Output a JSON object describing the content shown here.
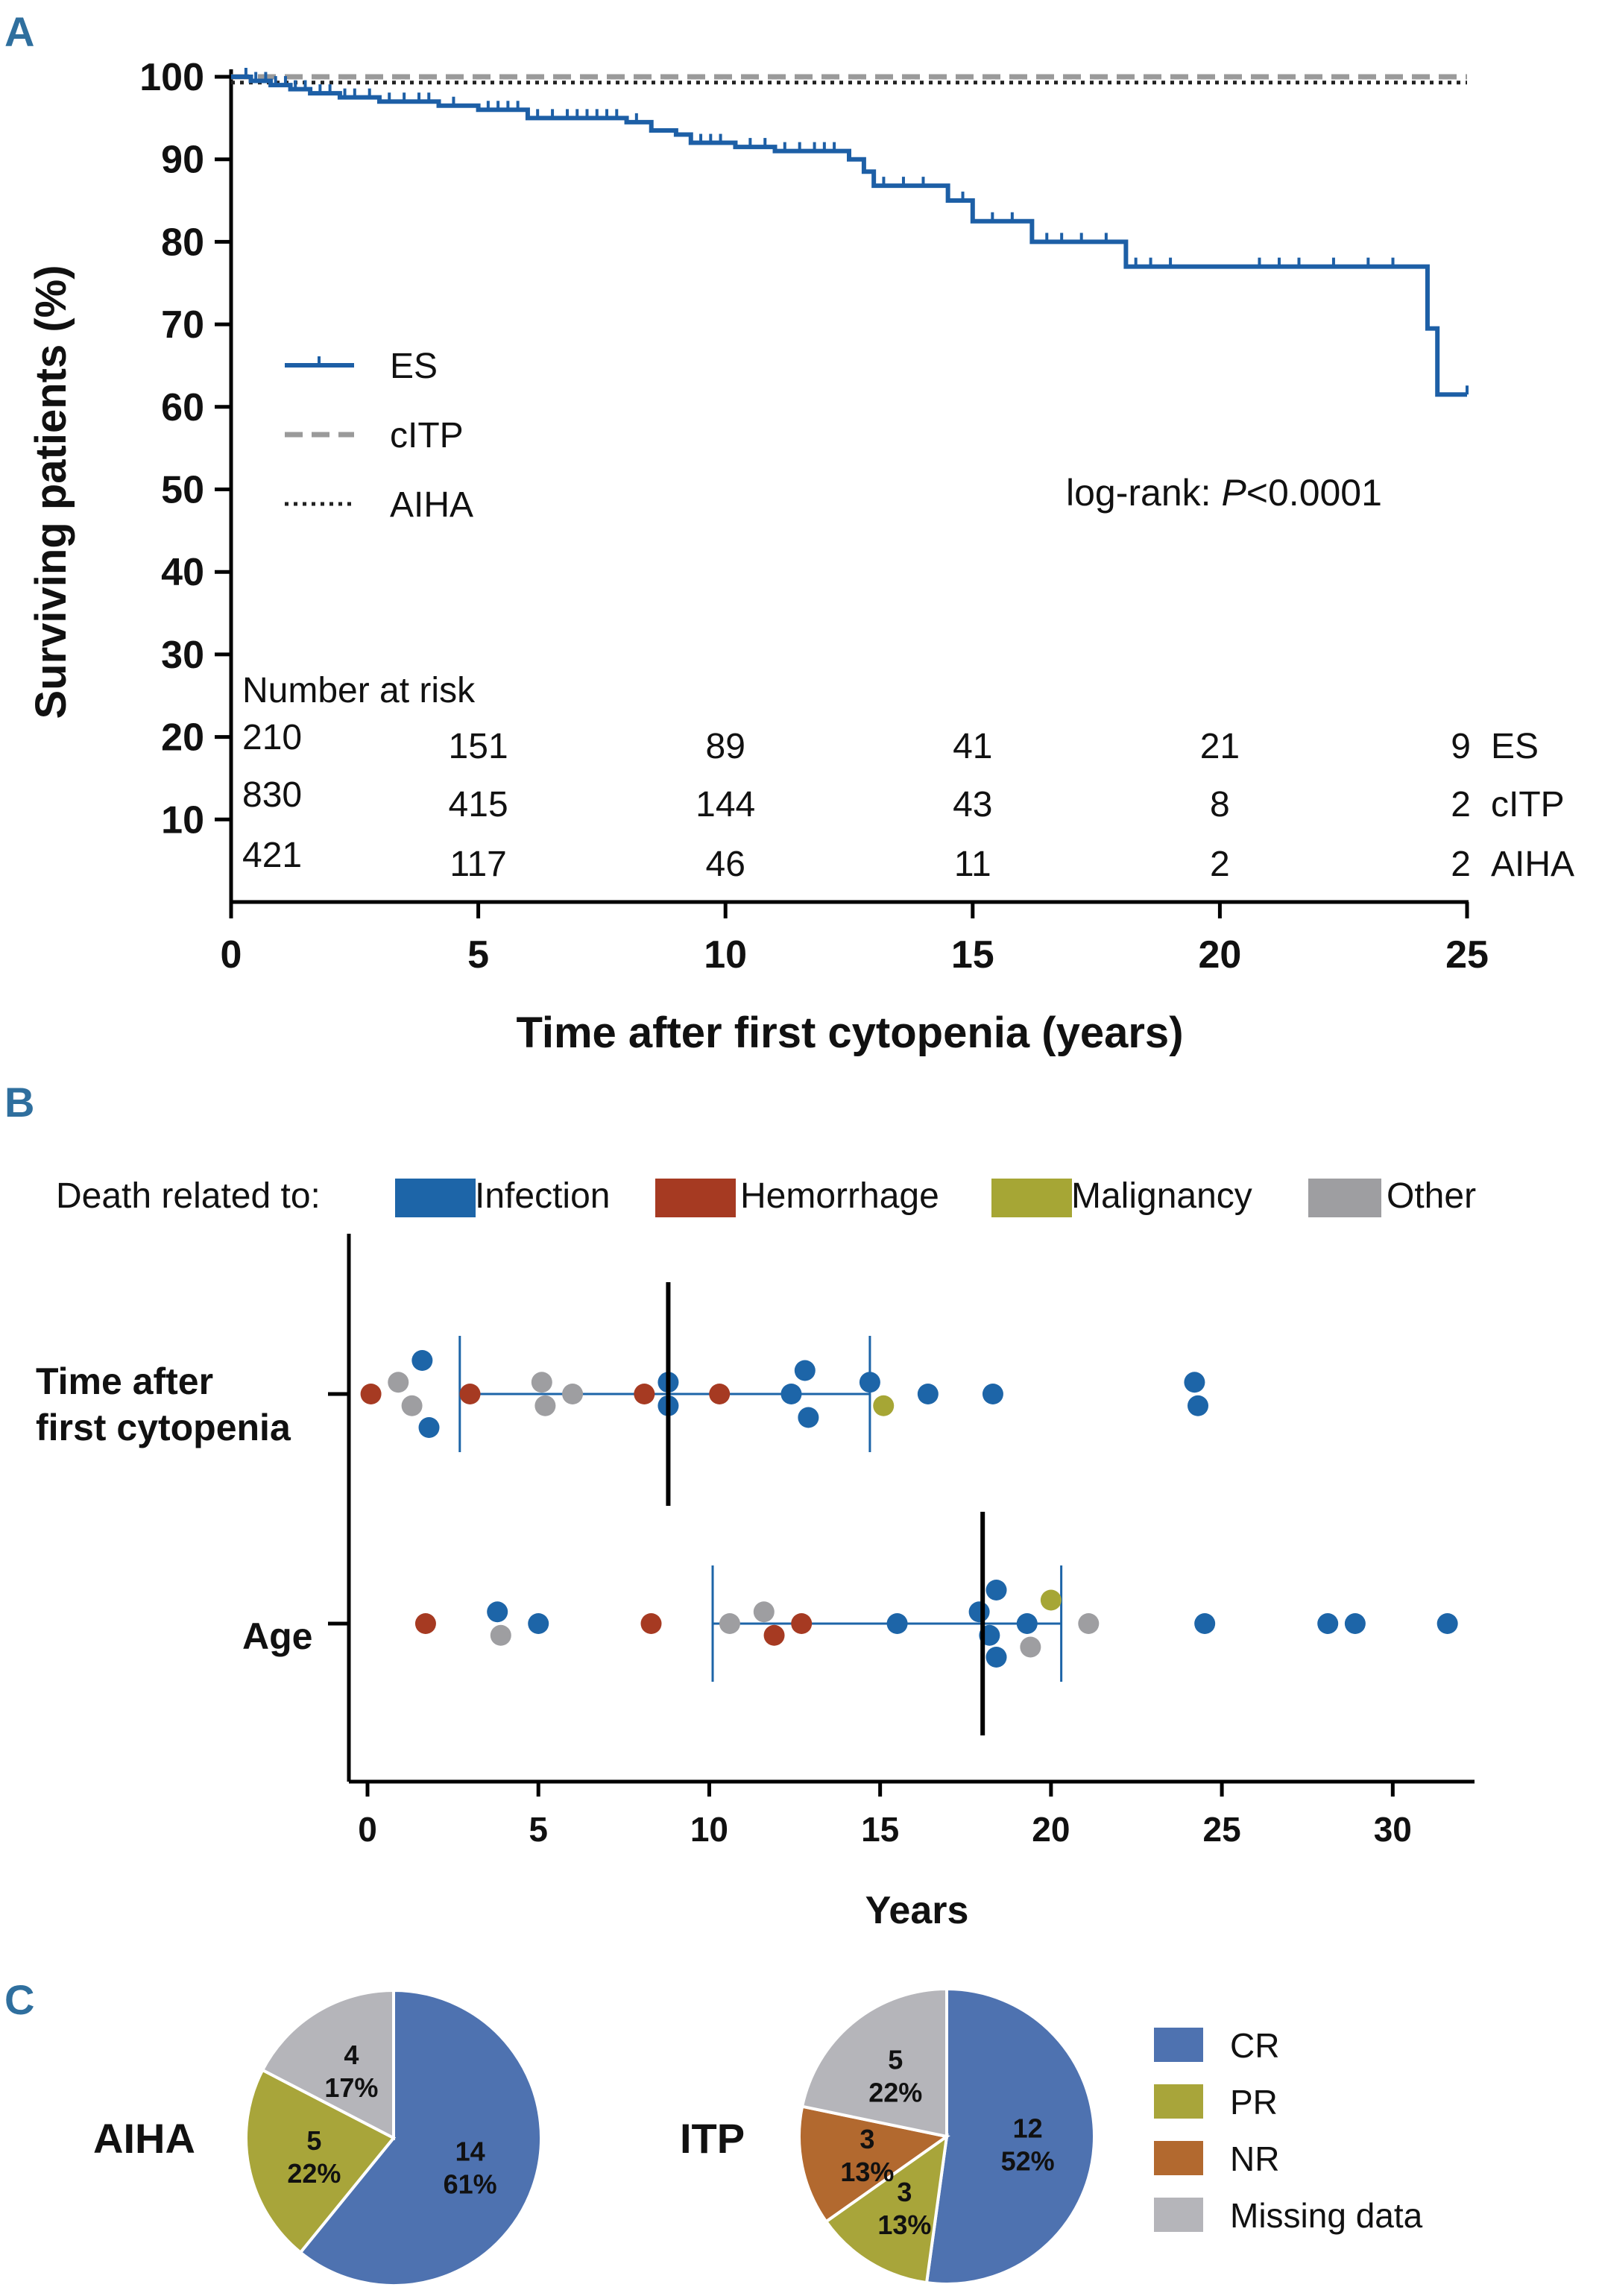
{
  "colors": {
    "es": "#1d5fa6",
    "citp": "#9a9a9a",
    "aiha": "#222222",
    "panel_label": "#2f6f9e",
    "infection": "#1d65a8",
    "hemorrhage": "#a63a22",
    "malignancy": "#a6a635",
    "other": "#9e9ea1",
    "cr": "#4e72b0",
    "pr": "#a8a53a",
    "nr": "#b2692f",
    "missing": "#b5b5ba"
  },
  "chart_data": [
    {
      "panel": "A",
      "type": "line",
      "subtype": "kaplan-meier",
      "xlabel": "Time after first cytopenia (years)",
      "ylabel": "Surviving patients (%)",
      "xlim": [
        0,
        25
      ],
      "ylim": [
        0,
        100
      ],
      "xticks": [
        "0",
        "5",
        "10",
        "15",
        "20",
        "25"
      ],
      "yticks": [
        "10",
        "20",
        "30",
        "40",
        "50",
        "60",
        "70",
        "80",
        "90",
        "100"
      ],
      "series": [
        {
          "name": "ES",
          "style": "solid",
          "steps": [
            [
              0,
              100
            ],
            [
              0.4,
              99.5
            ],
            [
              0.8,
              99
            ],
            [
              1.2,
              98.5
            ],
            [
              1.6,
              98
            ],
            [
              2.2,
              97.5
            ],
            [
              3,
              97
            ],
            [
              4.2,
              96.5
            ],
            [
              5,
              96
            ],
            [
              6,
              95
            ],
            [
              8,
              94.5
            ],
            [
              8.5,
              93.5
            ],
            [
              9,
              93
            ],
            [
              9.3,
              92
            ],
            [
              10.2,
              91.5
            ],
            [
              11,
              91
            ],
            [
              12.5,
              90
            ],
            [
              12.8,
              88.5
            ],
            [
              13,
              86.8
            ],
            [
              14.5,
              85
            ],
            [
              15,
              82.5
            ],
            [
              16.2,
              80
            ],
            [
              18.1,
              77
            ],
            [
              24.1,
              77
            ],
            [
              24.2,
              69.5
            ],
            [
              24.4,
              61.5
            ],
            [
              25,
              61.5
            ]
          ],
          "censor_years": [
            0.3,
            0.5,
            0.7,
            0.9,
            1.1,
            1.3,
            1.5,
            1.8,
            2.0,
            2.3,
            2.5,
            2.8,
            3.2,
            3.5,
            3.8,
            4.0,
            4.5,
            5.2,
            5.4,
            5.6,
            5.8,
            6.2,
            6.5,
            6.8,
            7.0,
            7.2,
            7.4,
            7.6,
            7.8,
            8.2,
            9.5,
            9.7,
            9.9,
            10.5,
            10.8,
            11.2,
            11.5,
            11.8,
            12.0,
            12.2,
            13.2,
            13.6,
            14.0,
            14.8,
            15.4,
            15.8,
            16.5,
            16.8,
            17.2,
            17.7,
            18.3,
            18.6,
            19.0,
            20.8,
            21.2,
            21.6,
            22.3,
            23.0,
            23.5,
            25.0
          ]
        },
        {
          "name": "cITP",
          "style": "dashed",
          "value": 100
        },
        {
          "name": "AIHA",
          "style": "dotted",
          "value": 99.3
        }
      ],
      "annotation": {
        "prefix": "log-rank: ",
        "p_symbol": "P",
        "p_value": "<0.0001"
      },
      "risk_table": {
        "title": "Number at risk",
        "years": [
          0,
          5,
          10,
          15,
          20,
          25
        ],
        "rows": [
          {
            "name": "ES",
            "values": [
              "210",
              "151",
              "89",
              "41",
              "21",
              "9"
            ]
          },
          {
            "name": "cITP",
            "values": [
              "830",
              "415",
              "144",
              "43",
              "8",
              "2"
            ]
          },
          {
            "name": "AIHA",
            "values": [
              "421",
              "117",
              "46",
              "11",
              "2",
              "2"
            ]
          }
        ]
      }
    },
    {
      "panel": "B",
      "type": "scatter",
      "subtype": "dot-plot",
      "xlabel": "Years",
      "xlim": [
        0,
        32
      ],
      "xticks": [
        "0",
        "5",
        "10",
        "15",
        "20",
        "25",
        "30"
      ],
      "legend_title": "Death related to:",
      "categories_legend": [
        "Infection",
        "Hemorrhage",
        "Malignancy",
        "Other"
      ],
      "rows": [
        {
          "label_line1": "Time after",
          "label_line2": "first cytopenia",
          "median": 8.8,
          "iqr": [
            2.7,
            14.7
          ],
          "points": [
            {
              "x": 0.1,
              "jitter": 0,
              "cat": "Hemorrhage"
            },
            {
              "x": 0.9,
              "jitter": 0.35,
              "cat": "Other"
            },
            {
              "x": 1.3,
              "jitter": -0.35,
              "cat": "Other"
            },
            {
              "x": 1.6,
              "jitter": 1.0,
              "cat": "Infection"
            },
            {
              "x": 1.8,
              "jitter": -1.0,
              "cat": "Infection"
            },
            {
              "x": 3.0,
              "jitter": 0,
              "cat": "Hemorrhage"
            },
            {
              "x": 5.1,
              "jitter": 0.35,
              "cat": "Other"
            },
            {
              "x": 5.2,
              "jitter": -0.35,
              "cat": "Other"
            },
            {
              "x": 6.0,
              "jitter": 0,
              "cat": "Other"
            },
            {
              "x": 8.1,
              "jitter": 0,
              "cat": "Hemorrhage"
            },
            {
              "x": 8.8,
              "jitter": 0.35,
              "cat": "Infection"
            },
            {
              "x": 8.8,
              "jitter": -0.35,
              "cat": "Infection"
            },
            {
              "x": 10.3,
              "jitter": 0,
              "cat": "Hemorrhage"
            },
            {
              "x": 12.4,
              "jitter": 0,
              "cat": "Infection"
            },
            {
              "x": 12.8,
              "jitter": 0.7,
              "cat": "Infection"
            },
            {
              "x": 12.9,
              "jitter": -0.7,
              "cat": "Infection"
            },
            {
              "x": 14.7,
              "jitter": 0.35,
              "cat": "Infection"
            },
            {
              "x": 15.1,
              "jitter": -0.35,
              "cat": "Malignancy"
            },
            {
              "x": 16.4,
              "jitter": 0,
              "cat": "Infection"
            },
            {
              "x": 18.3,
              "jitter": 0,
              "cat": "Infection"
            },
            {
              "x": 24.2,
              "jitter": 0.35,
              "cat": "Infection"
            },
            {
              "x": 24.3,
              "jitter": -0.35,
              "cat": "Infection"
            }
          ]
        },
        {
          "label_line1": "Age",
          "median": 18.0,
          "iqr": [
            10.1,
            20.3
          ],
          "points": [
            {
              "x": 1.7,
              "jitter": 0,
              "cat": "Hemorrhage"
            },
            {
              "x": 3.8,
              "jitter": 0.35,
              "cat": "Infection"
            },
            {
              "x": 3.9,
              "jitter": -0.35,
              "cat": "Other"
            },
            {
              "x": 5.0,
              "jitter": 0,
              "cat": "Infection"
            },
            {
              "x": 8.3,
              "jitter": 0,
              "cat": "Hemorrhage"
            },
            {
              "x": 10.6,
              "jitter": 0,
              "cat": "Other"
            },
            {
              "x": 11.6,
              "jitter": 0.35,
              "cat": "Other"
            },
            {
              "x": 11.9,
              "jitter": -0.35,
              "cat": "Hemorrhage"
            },
            {
              "x": 12.7,
              "jitter": 0,
              "cat": "Hemorrhage"
            },
            {
              "x": 15.5,
              "jitter": 0,
              "cat": "Infection"
            },
            {
              "x": 17.9,
              "jitter": 0.35,
              "cat": "Infection"
            },
            {
              "x": 18.2,
              "jitter": -0.35,
              "cat": "Infection"
            },
            {
              "x": 18.4,
              "jitter": 1.0,
              "cat": "Infection"
            },
            {
              "x": 18.4,
              "jitter": -1.0,
              "cat": "Infection"
            },
            {
              "x": 19.3,
              "jitter": 0,
              "cat": "Infection"
            },
            {
              "x": 19.4,
              "jitter": -0.7,
              "cat": "Other"
            },
            {
              "x": 20.0,
              "jitter": 0.7,
              "cat": "Malignancy"
            },
            {
              "x": 21.1,
              "jitter": 0,
              "cat": "Other"
            },
            {
              "x": 24.5,
              "jitter": 0,
              "cat": "Infection"
            },
            {
              "x": 28.1,
              "jitter": 0,
              "cat": "Infection"
            },
            {
              "x": 28.9,
              "jitter": 0,
              "cat": "Infection"
            },
            {
              "x": 31.6,
              "jitter": 0,
              "cat": "Infection"
            }
          ]
        }
      ]
    },
    {
      "panel": "C",
      "type": "pie",
      "legend": [
        "CR",
        "PR",
        "NR",
        "Missing data"
      ],
      "pies": [
        {
          "title": "AIHA",
          "slices": [
            {
              "cat": "CR",
              "count": "14",
              "pct": "61%",
              "value": 14
            },
            {
              "cat": "PR",
              "count": "5",
              "pct": "22%",
              "value": 5
            },
            {
              "cat": "Missing data",
              "count": "4",
              "pct": "17%",
              "value": 4
            }
          ]
        },
        {
          "title": "ITP",
          "slices": [
            {
              "cat": "CR",
              "count": "12",
              "pct": "52%",
              "value": 12
            },
            {
              "cat": "PR",
              "count": "3",
              "pct": "13%",
              "value": 3
            },
            {
              "cat": "NR",
              "count": "3",
              "pct": "13%",
              "value": 3
            },
            {
              "cat": "Missing data",
              "count": "5",
              "pct": "22%",
              "value": 5
            }
          ]
        }
      ]
    }
  ]
}
